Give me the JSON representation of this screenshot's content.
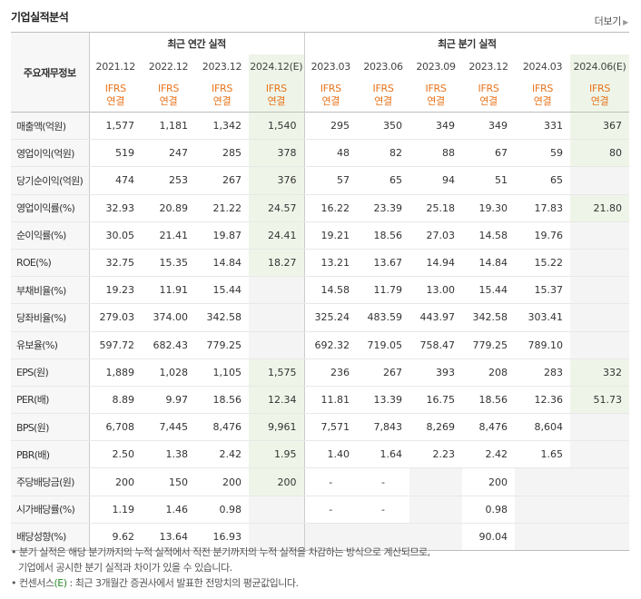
{
  "header": {
    "title": "기업실적분석",
    "more_label": "더보기"
  },
  "table": {
    "row_header_label": "주요재무정보",
    "groups": {
      "annual": "최근 연간 실적",
      "quarter": "최근 분기 실적"
    },
    "periods": [
      "2021.12",
      "2022.12",
      "2023.12",
      "2024.12(E)",
      "2023.03",
      "2023.06",
      "2023.09",
      "2023.12",
      "2024.03",
      "2024.06(E)"
    ],
    "basis_line1": "IFRS",
    "basis_line2": "연결",
    "rows": [
      {
        "label": "매출액(억원)",
        "values": [
          "1,577",
          "1,181",
          "1,342",
          "1,540",
          "295",
          "350",
          "349",
          "349",
          "331",
          "367"
        ]
      },
      {
        "label": "영업이익(억원)",
        "values": [
          "519",
          "247",
          "285",
          "378",
          "48",
          "82",
          "88",
          "67",
          "59",
          "80"
        ]
      },
      {
        "label": "당기순이익(억원)",
        "values": [
          "474",
          "253",
          "267",
          "376",
          "57",
          "65",
          "94",
          "51",
          "65",
          ""
        ]
      },
      {
        "label": "영업이익률(%)",
        "values": [
          "32.93",
          "20.89",
          "21.22",
          "24.57",
          "16.22",
          "23.39",
          "25.18",
          "19.30",
          "17.83",
          "21.80"
        ]
      },
      {
        "label": "순이익률(%)",
        "values": [
          "30.05",
          "21.41",
          "19.87",
          "24.41",
          "19.21",
          "18.56",
          "27.03",
          "14.58",
          "19.76",
          ""
        ]
      },
      {
        "label": "ROE(%)",
        "values": [
          "32.75",
          "15.35",
          "14.84",
          "18.27",
          "13.21",
          "13.67",
          "14.94",
          "14.84",
          "15.22",
          ""
        ]
      },
      {
        "label": "부채비율(%)",
        "values": [
          "19.23",
          "11.91",
          "15.44",
          "",
          "14.58",
          "11.79",
          "13.00",
          "15.44",
          "15.37",
          ""
        ]
      },
      {
        "label": "당좌비율(%)",
        "values": [
          "279.03",
          "374.00",
          "342.58",
          "",
          "325.24",
          "483.59",
          "443.97",
          "342.58",
          "303.41",
          ""
        ]
      },
      {
        "label": "유보율(%)",
        "values": [
          "597.72",
          "682.43",
          "779.25",
          "",
          "692.32",
          "719.05",
          "758.47",
          "779.25",
          "789.10",
          ""
        ]
      },
      {
        "label": "EPS(원)",
        "values": [
          "1,889",
          "1,028",
          "1,105",
          "1,575",
          "236",
          "267",
          "393",
          "208",
          "283",
          "332"
        ]
      },
      {
        "label": "PER(배)",
        "values": [
          "8.89",
          "9.97",
          "18.56",
          "12.34",
          "11.81",
          "13.39",
          "16.75",
          "18.56",
          "12.36",
          "51.73"
        ]
      },
      {
        "label": "BPS(원)",
        "values": [
          "6,708",
          "7,445",
          "8,476",
          "9,961",
          "7,571",
          "7,843",
          "8,269",
          "8,476",
          "8,604",
          ""
        ]
      },
      {
        "label": "PBR(배)",
        "values": [
          "2.50",
          "1.38",
          "2.42",
          "1.95",
          "1.40",
          "1.64",
          "2.23",
          "2.42",
          "1.65",
          ""
        ]
      },
      {
        "label": "주당배당금(원)",
        "values": [
          "200",
          "150",
          "200",
          "200",
          "-",
          "-",
          "",
          "200",
          "",
          ""
        ]
      },
      {
        "label": "시가배당률(%)",
        "values": [
          "1.19",
          "1.46",
          "0.98",
          "",
          "-",
          "-",
          "",
          "0.98",
          "",
          ""
        ]
      },
      {
        "label": "배당성향(%)",
        "values": [
          "9.62",
          "13.64",
          "16.93",
          "",
          "",
          "",
          "",
          "90.04",
          "",
          ""
        ]
      }
    ]
  },
  "notes": {
    "line1": "분기 실적은 해당 분기까지의 누적 실적에서 직전 분기까지의 누적 실적을 차감하는 방식으로 계산되므로,",
    "line2": "기업에서 공시한 분기 실적과 차이가 있을 수 있습니다.",
    "line3_prefix": "컨센서스",
    "line3_e": "(E)",
    "line3_suffix": ": 최근 3개월간 증권사에서 발표한 전망치의 평균값입니다."
  }
}
